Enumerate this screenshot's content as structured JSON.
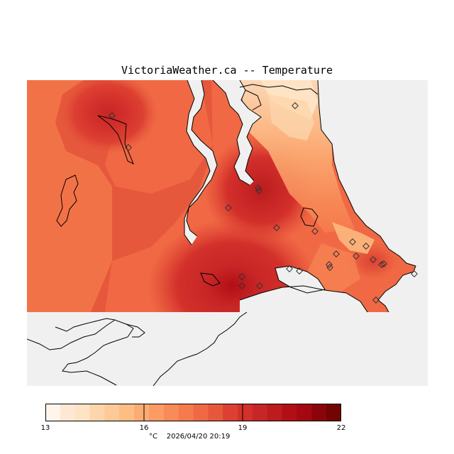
{
  "title": "VictoriaWeather.ca -- Temperature",
  "colorbar": {
    "min": 13,
    "max": 22,
    "ticks": [
      "13",
      "16",
      "19",
      "22"
    ],
    "tick_values": [
      13,
      16,
      19,
      22
    ],
    "units": "°C",
    "timestamp": "2026/04/20 20:19",
    "colors": [
      "#fff5eb",
      "#fee8d4",
      "#fee3c4",
      "#fdd5ab",
      "#fdc997",
      "#fdbd83",
      "#fcac73",
      "#fc9b63",
      "#f88b58",
      "#f57b4d",
      "#f06944",
      "#e6583b",
      "#dd4032",
      "#d3302b",
      "#c72626",
      "#bd1c1e",
      "#b20e16",
      "#a40810",
      "#8a0509",
      "#740303"
    ]
  },
  "map": {
    "stations": 24
  }
}
